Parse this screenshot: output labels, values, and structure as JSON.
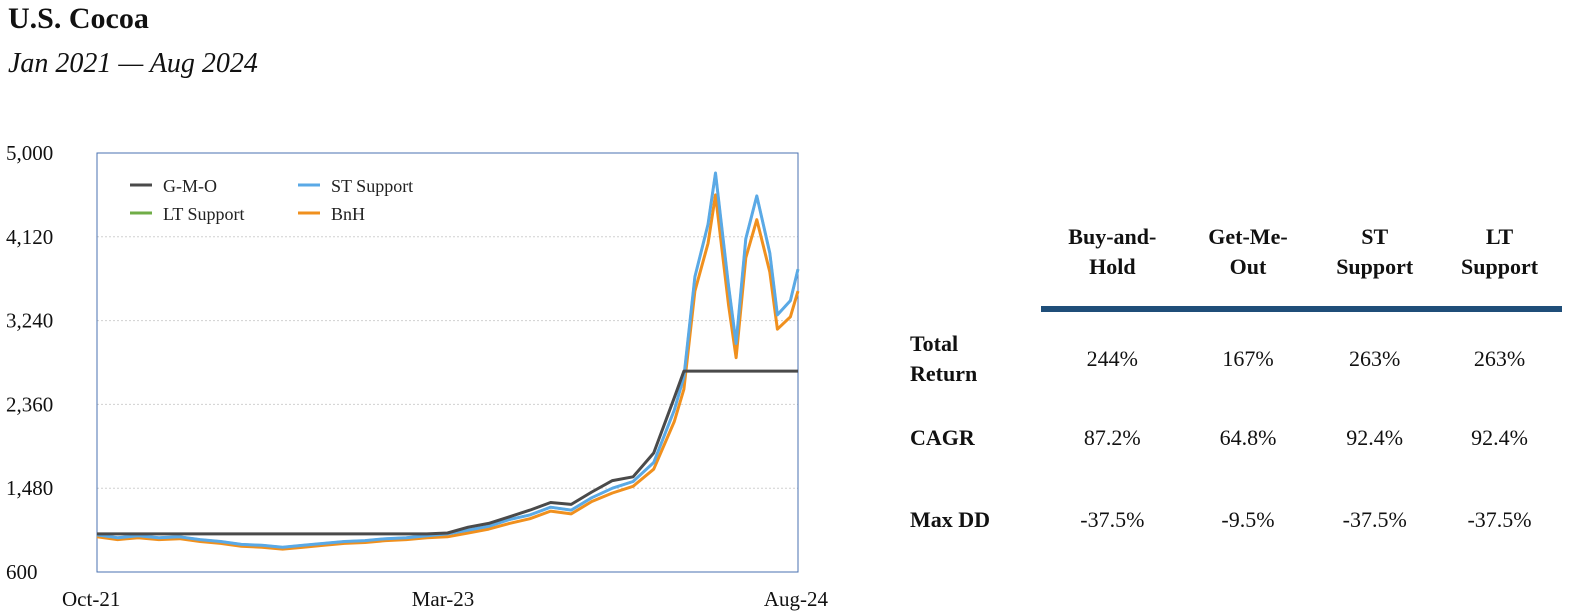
{
  "title": "U.S. Cocoa",
  "subtitle": "Jan 2021 — Aug 2024",
  "colors": {
    "gmo": "#4a4a4a",
    "st": "#5aa9e6",
    "lt": "#70ad47",
    "bnh": "#f0901e",
    "rule": "#1f4e79",
    "frame": "#4a72b0"
  },
  "chart_data": {
    "type": "line",
    "x_ticks": [
      "Oct-21",
      "Mar-23",
      "Aug-24"
    ],
    "x_range": [
      "2021-10",
      "2024-08"
    ],
    "ylim": [
      600,
      5000
    ],
    "y_ticks": [
      600,
      1480,
      2360,
      3240,
      4120,
      5000
    ],
    "y_tick_labels": [
      "600",
      "1,480",
      "2,360",
      "3,240",
      "4,120",
      "5,000"
    ],
    "grid": "horizontal",
    "legend_position": "top-left",
    "series": [
      {
        "name": "G-M-O",
        "key": "gmo",
        "points": [
          [
            "2021-10",
            1000
          ],
          [
            "2022-06",
            1000
          ],
          [
            "2023-02",
            1000
          ],
          [
            "2023-03",
            1010
          ],
          [
            "2023-04",
            1070
          ],
          [
            "2023-05",
            1110
          ],
          [
            "2023-06",
            1180
          ],
          [
            "2023-07",
            1250
          ],
          [
            "2023-08",
            1330
          ],
          [
            "2023-09",
            1310
          ],
          [
            "2023-10",
            1440
          ],
          [
            "2023-11",
            1560
          ],
          [
            "2023-12",
            1600
          ],
          [
            "2024-01",
            1850
          ],
          [
            "2024-02",
            2430
          ],
          [
            "2024-02-15",
            2710
          ],
          [
            "2024-03",
            2710
          ],
          [
            "2024-04",
            2710
          ],
          [
            "2024-05",
            2710
          ],
          [
            "2024-06",
            2710
          ],
          [
            "2024-07",
            2710
          ],
          [
            "2024-08",
            2710
          ]
        ]
      },
      {
        "name": "ST Support",
        "key": "st",
        "points": [
          [
            "2021-10",
            990
          ],
          [
            "2021-11",
            960
          ],
          [
            "2021-12",
            980
          ],
          [
            "2022-01",
            960
          ],
          [
            "2022-02",
            970
          ],
          [
            "2022-03",
            940
          ],
          [
            "2022-04",
            920
          ],
          [
            "2022-05",
            890
          ],
          [
            "2022-06",
            880
          ],
          [
            "2022-07",
            860
          ],
          [
            "2022-08",
            880
          ],
          [
            "2022-09",
            900
          ],
          [
            "2022-10",
            920
          ],
          [
            "2022-11",
            930
          ],
          [
            "2022-12",
            950
          ],
          [
            "2023-01",
            960
          ],
          [
            "2023-02",
            980
          ],
          [
            "2023-03",
            1000
          ],
          [
            "2023-04",
            1040
          ],
          [
            "2023-05",
            1080
          ],
          [
            "2023-06",
            1150
          ],
          [
            "2023-07",
            1200
          ],
          [
            "2023-08",
            1280
          ],
          [
            "2023-09",
            1250
          ],
          [
            "2023-10",
            1380
          ],
          [
            "2023-11",
            1480
          ],
          [
            "2023-12",
            1550
          ],
          [
            "2024-01",
            1750
          ],
          [
            "2024-02",
            2300
          ],
          [
            "2024-02-15",
            2650
          ],
          [
            "2024-03",
            3700
          ],
          [
            "2024-03-20",
            4250
          ],
          [
            "2024-04",
            4790
          ],
          [
            "2024-04-20",
            3600
          ],
          [
            "2024-05",
            3000
          ],
          [
            "2024-05-15",
            4100
          ],
          [
            "2024-06",
            4550
          ],
          [
            "2024-06-20",
            3950
          ],
          [
            "2024-07",
            3300
          ],
          [
            "2024-07-20",
            3450
          ],
          [
            "2024-08",
            3780
          ]
        ]
      },
      {
        "name": "LT Support",
        "key": "lt",
        "points": [
          [
            "2021-10",
            990
          ],
          [
            "2021-11",
            960
          ],
          [
            "2021-12",
            980
          ],
          [
            "2022-01",
            960
          ],
          [
            "2022-02",
            970
          ],
          [
            "2022-03",
            940
          ],
          [
            "2022-04",
            920
          ],
          [
            "2022-05",
            890
          ],
          [
            "2022-06",
            880
          ],
          [
            "2022-07",
            860
          ],
          [
            "2022-08",
            880
          ],
          [
            "2022-09",
            900
          ],
          [
            "2022-10",
            920
          ],
          [
            "2022-11",
            930
          ],
          [
            "2022-12",
            950
          ],
          [
            "2023-01",
            960
          ],
          [
            "2023-02",
            980
          ],
          [
            "2023-03",
            1000
          ],
          [
            "2023-04",
            1040
          ],
          [
            "2023-05",
            1080
          ],
          [
            "2023-06",
            1150
          ],
          [
            "2023-07",
            1200
          ],
          [
            "2023-08",
            1280
          ],
          [
            "2023-09",
            1250
          ],
          [
            "2023-10",
            1380
          ],
          [
            "2023-11",
            1480
          ],
          [
            "2023-12",
            1550
          ],
          [
            "2024-01",
            1750
          ],
          [
            "2024-02",
            2300
          ],
          [
            "2024-02-15",
            2650
          ],
          [
            "2024-03",
            3700
          ],
          [
            "2024-03-20",
            4250
          ],
          [
            "2024-04",
            4790
          ],
          [
            "2024-04-20",
            3600
          ],
          [
            "2024-05",
            3000
          ],
          [
            "2024-05-15",
            4100
          ],
          [
            "2024-06",
            4550
          ],
          [
            "2024-06-20",
            3950
          ],
          [
            "2024-07",
            3300
          ],
          [
            "2024-07-20",
            3450
          ],
          [
            "2024-08",
            3780
          ]
        ]
      },
      {
        "name": "BnH",
        "key": "bnh",
        "points": [
          [
            "2021-10",
            970
          ],
          [
            "2021-11",
            940
          ],
          [
            "2021-12",
            960
          ],
          [
            "2022-01",
            940
          ],
          [
            "2022-02",
            950
          ],
          [
            "2022-03",
            920
          ],
          [
            "2022-04",
            900
          ],
          [
            "2022-05",
            870
          ],
          [
            "2022-06",
            860
          ],
          [
            "2022-07",
            840
          ],
          [
            "2022-08",
            860
          ],
          [
            "2022-09",
            880
          ],
          [
            "2022-10",
            900
          ],
          [
            "2022-11",
            910
          ],
          [
            "2022-12",
            930
          ],
          [
            "2023-01",
            940
          ],
          [
            "2023-02",
            960
          ],
          [
            "2023-03",
            970
          ],
          [
            "2023-04",
            1010
          ],
          [
            "2023-05",
            1050
          ],
          [
            "2023-06",
            1110
          ],
          [
            "2023-07",
            1160
          ],
          [
            "2023-08",
            1240
          ],
          [
            "2023-09",
            1210
          ],
          [
            "2023-10",
            1340
          ],
          [
            "2023-11",
            1430
          ],
          [
            "2023-12",
            1500
          ],
          [
            "2024-01",
            1680
          ],
          [
            "2024-02",
            2180
          ],
          [
            "2024-02-15",
            2520
          ],
          [
            "2024-03",
            3550
          ],
          [
            "2024-03-20",
            4050
          ],
          [
            "2024-04",
            4560
          ],
          [
            "2024-04-20",
            3400
          ],
          [
            "2024-05",
            2850
          ],
          [
            "2024-05-15",
            3900
          ],
          [
            "2024-06",
            4300
          ],
          [
            "2024-06-20",
            3750
          ],
          [
            "2024-07",
            3150
          ],
          [
            "2024-07-20",
            3280
          ],
          [
            "2024-08",
            3550
          ]
        ]
      }
    ]
  },
  "stats": {
    "headers": [
      "Buy-and-\nHold",
      "Get-Me-\nOut",
      "ST\nSupport",
      "LT\nSupport"
    ],
    "rows": [
      {
        "label": "Total\nReturn",
        "values": [
          "244%",
          "167%",
          "263%",
          "263%"
        ]
      },
      {
        "label": "CAGR",
        "values": [
          "87.2%",
          "64.8%",
          "92.4%",
          "92.4%"
        ]
      },
      {
        "label": "Max DD",
        "values": [
          "-37.5%",
          "-9.5%",
          "-37.5%",
          "-37.5%"
        ]
      }
    ]
  }
}
